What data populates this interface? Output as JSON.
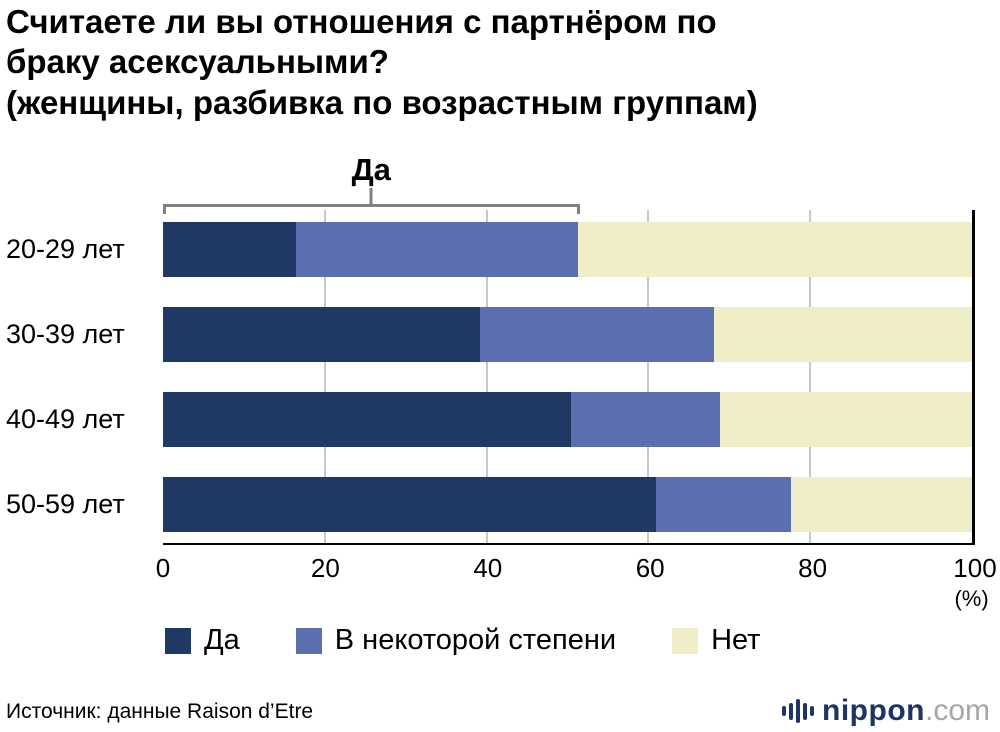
{
  "title": {
    "line1": "Считаете ли вы отношения с партнёром по",
    "line2": "браку асексуальными?",
    "line3": "(женщины, разбивка по возрастным группам)"
  },
  "annotation": {
    "label": "Да",
    "span_pct": 51.3
  },
  "chart_data": {
    "type": "bar",
    "orientation": "horizontal",
    "stacked": true,
    "unit": "(%)",
    "categories": [
      "20-29 лет",
      "30-39 лет",
      "40-49 лет",
      "50-59 лет"
    ],
    "series": [
      {
        "name": "Да",
        "color": "#203864",
        "values": [
          16.4,
          39.2,
          50.4,
          61.0
        ]
      },
      {
        "name": "В некоторой степени",
        "color": "#5b6fb0",
        "values": [
          34.9,
          28.9,
          18.4,
          16.6
        ]
      },
      {
        "name": "Нет",
        "color": "#f0eec9",
        "values": [
          48.7,
          31.9,
          31.2,
          22.4
        ]
      }
    ],
    "x_ticks": [
      0,
      20,
      40,
      60,
      80,
      100
    ],
    "xlim": [
      0,
      100
    ],
    "grid": true,
    "legend_position": "bottom"
  },
  "footer": {
    "source": "Источник: данные Raison d’Etre",
    "brand": {
      "name": "nippon",
      "tld": ".com"
    }
  },
  "colors": {
    "grid": "#c8c8c8",
    "axis": "#000000",
    "bracket": "#808080",
    "navy": "#1e3366",
    "gray_tld": "#a6a6a6"
  }
}
